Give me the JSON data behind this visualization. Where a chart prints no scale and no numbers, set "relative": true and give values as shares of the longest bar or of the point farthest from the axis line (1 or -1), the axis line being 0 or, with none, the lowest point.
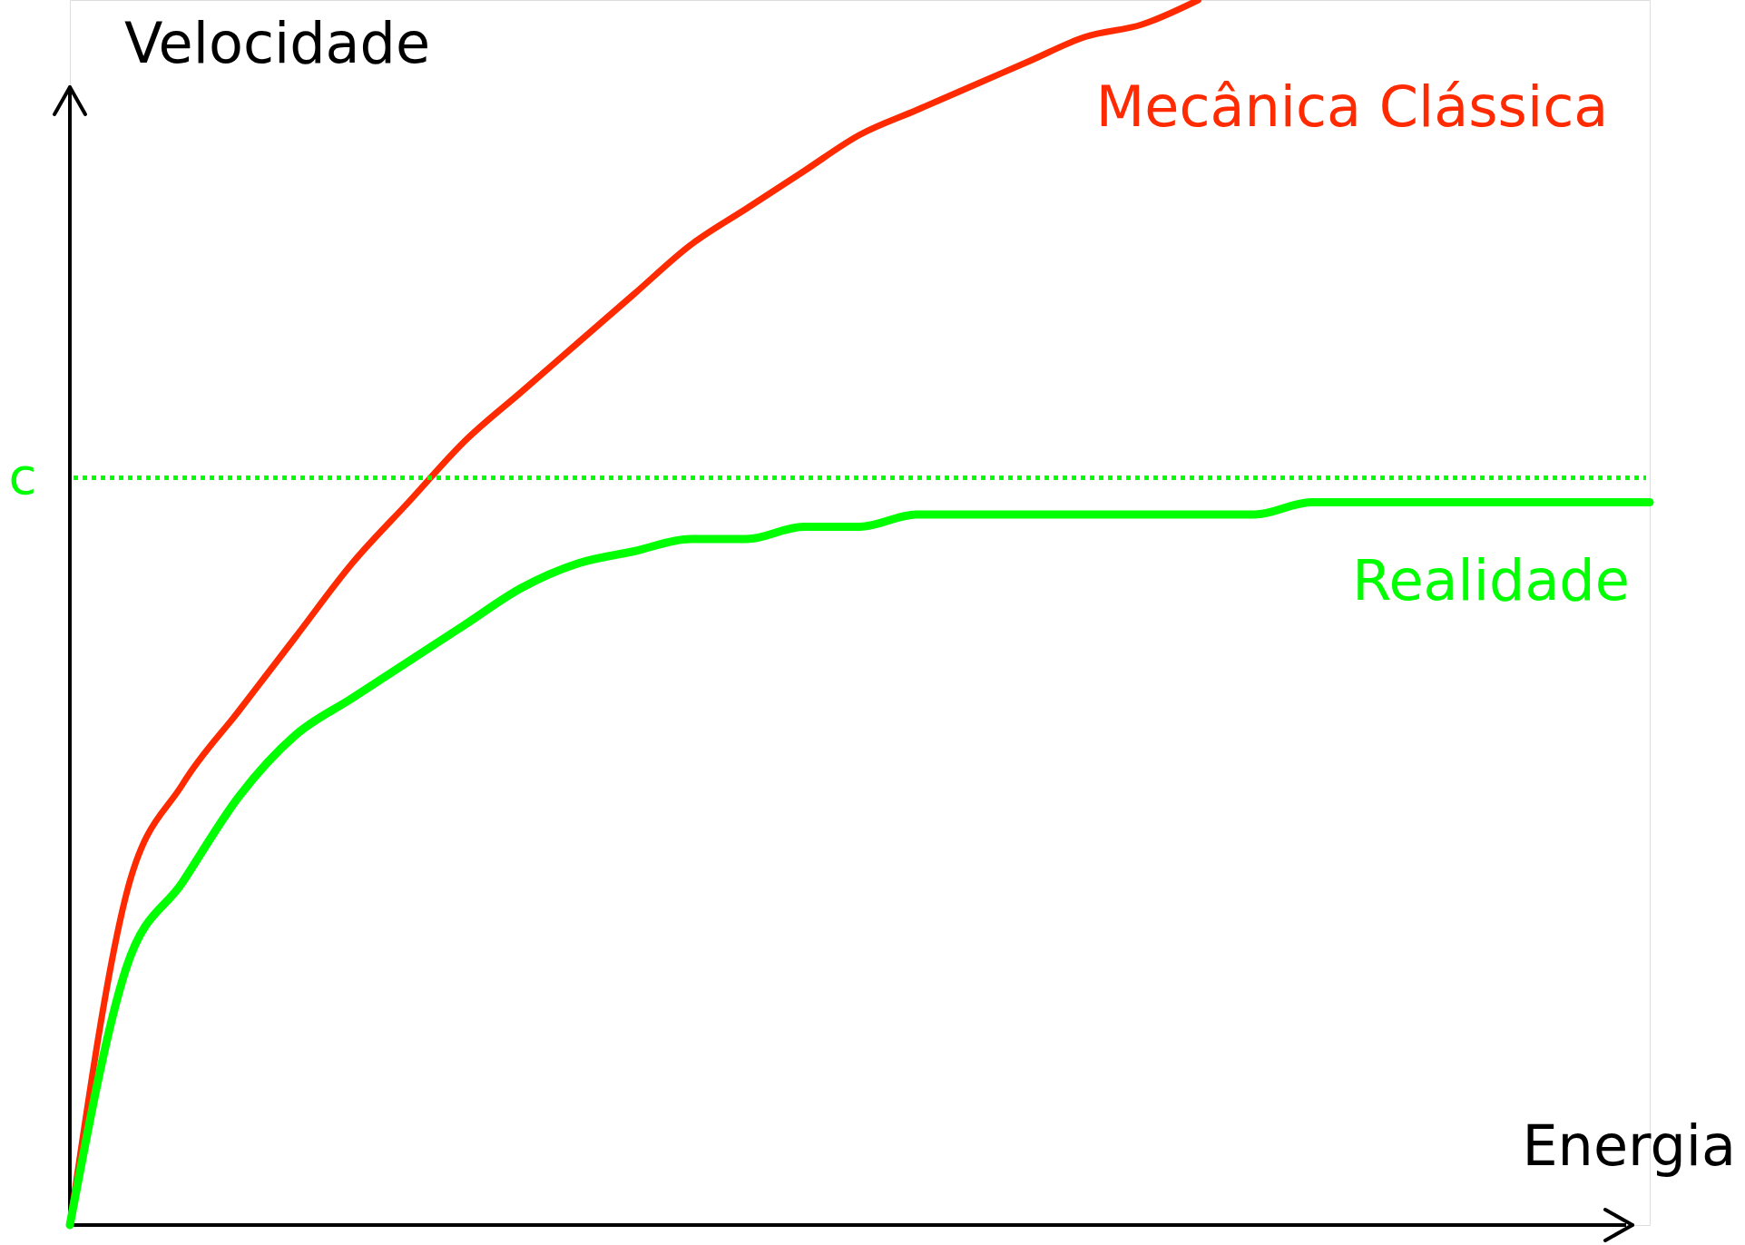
{
  "chart_data": {
    "type": "line",
    "xlabel": "Energia",
    "ylabel": "Velocidade",
    "relative": true,
    "legend": false,
    "marker": "none",
    "line_style": "solid",
    "categories": [
      null,
      null,
      null,
      null,
      null,
      null,
      null,
      null,
      null,
      null,
      null,
      null,
      null,
      null,
      null,
      null,
      null,
      null,
      null,
      null,
      null,
      null,
      null,
      null,
      null,
      null,
      null,
      null,
      null
    ],
    "series": [
      {
        "name": "Mecânica Clássica",
        "color": "#ff2a00",
        "values": [
          0,
          0.27,
          0.36,
          0.42,
          0.48,
          0.54,
          0.59,
          0.64,
          0.68,
          0.72,
          0.76,
          0.8,
          0.83,
          0.86,
          0.89,
          0.91,
          0.93,
          0.95,
          0.97,
          0.98,
          1.0,
          null,
          null,
          null,
          null,
          null,
          null,
          null,
          null
        ]
      },
      {
        "name": "Realidade",
        "color": "#00ff00",
        "values": [
          0,
          0.21,
          0.28,
          0.35,
          0.4,
          0.43,
          0.46,
          0.49,
          0.52,
          0.54,
          0.55,
          0.56,
          0.56,
          0.57,
          0.57,
          0.58,
          0.58,
          0.58,
          0.58,
          0.58,
          0.58,
          0.58,
          0.59,
          0.59,
          0.59,
          0.59,
          0.59,
          0.59,
          0.59
        ]
      }
    ],
    "ref_lines": [
      {
        "axis": "y",
        "value": 0.61,
        "label": "c",
        "color": "#00ff00",
        "line_style": "dotted"
      }
    ]
  }
}
